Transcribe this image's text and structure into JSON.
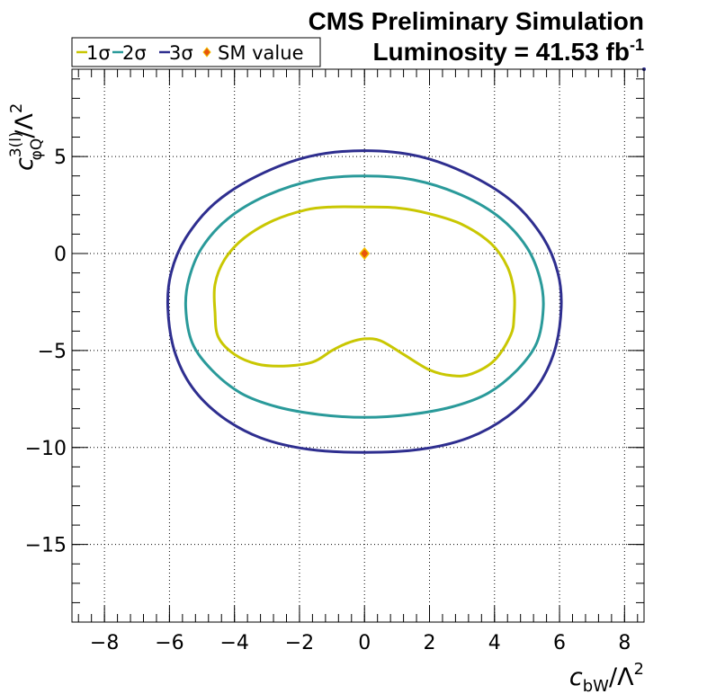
{
  "header": {
    "title": "CMS Preliminary Simulation",
    "luminosity_label": "Luminosity = 41.53 fb",
    "luminosity_exponent": "-1"
  },
  "legend": {
    "items": [
      {
        "label": "1σ",
        "color": "#c9c702",
        "marker": "line"
      },
      {
        "label": "2σ",
        "color": "#2a9a9a",
        "marker": "line"
      },
      {
        "label": "3σ",
        "color": "#2e2e8f",
        "marker": "line"
      },
      {
        "label": "SM value",
        "color": "#e8550c",
        "marker": "diamond"
      }
    ]
  },
  "axes": {
    "x": {
      "symbol": "c",
      "subscript": "bW",
      "suffix": "/Λ",
      "power": "2"
    },
    "y": {
      "symbol": "c",
      "superscript": "3(l)",
      "subscript": "φQ",
      "suffix": "/Λ",
      "power": "2"
    }
  },
  "chart_data": {
    "type": "line",
    "xlim": [
      -9.0,
      8.6
    ],
    "ylim": [
      -19.0,
      9.5
    ],
    "grid": true,
    "legend_position": "top-left",
    "x_ticks": [
      -8,
      -6,
      -4,
      -2,
      0,
      2,
      4,
      6,
      8
    ],
    "x_tick_labels": [
      "−8",
      "−6",
      "−4",
      "−2",
      "0",
      "2",
      "4",
      "6",
      "8"
    ],
    "y_ticks": [
      -15,
      -10,
      -5,
      0,
      5
    ],
    "y_tick_labels": [
      "−15",
      "−10",
      "−5",
      "0",
      "5"
    ],
    "sm_value": {
      "x": 0,
      "y": 0,
      "color": "#e8550c"
    },
    "series": [
      {
        "name": "1σ",
        "color": "#c9c702",
        "x": [
          0.0,
          1.0,
          2.0,
          3.0,
          3.9,
          4.4,
          4.6,
          4.6,
          4.5,
          4.0,
          3.3,
          2.7,
          2.0,
          1.2,
          0.5,
          0.0,
          -0.5,
          -1.0,
          -1.6,
          -2.5,
          -3.3,
          -4.0,
          -4.5,
          -4.6,
          -4.6,
          -4.3,
          -3.7,
          -2.8,
          -1.8,
          -1.0,
          0.0
        ],
        "y": [
          2.4,
          2.35,
          2.05,
          1.5,
          0.5,
          -0.7,
          -2.0,
          -3.2,
          -4.2,
          -5.5,
          -6.2,
          -6.3,
          -6.0,
          -5.2,
          -4.5,
          -4.4,
          -4.6,
          -5.0,
          -5.6,
          -5.8,
          -5.7,
          -5.2,
          -4.3,
          -3.0,
          -1.6,
          -0.3,
          0.8,
          1.7,
          2.25,
          2.4,
          2.4
        ]
      },
      {
        "name": "2σ",
        "color": "#2a9a9a",
        "x": [
          0.0,
          1.5,
          3.0,
          4.2,
          5.0,
          5.4,
          5.5,
          5.3,
          4.7,
          3.8,
          2.7,
          1.4,
          0.0,
          -1.4,
          -2.7,
          -3.8,
          -4.7,
          -5.3,
          -5.5,
          -5.4,
          -5.0,
          -4.2,
          -3.0,
          -1.5,
          0.0
        ],
        "y": [
          4.0,
          3.8,
          3.0,
          1.8,
          0.3,
          -1.3,
          -2.8,
          -4.6,
          -6.0,
          -7.2,
          -7.9,
          -8.3,
          -8.45,
          -8.3,
          -7.9,
          -7.2,
          -6.0,
          -4.6,
          -2.8,
          -1.3,
          0.3,
          1.8,
          3.0,
          3.8,
          4.0
        ]
      },
      {
        "name": "3σ",
        "color": "#2e2e8f",
        "x": [
          0.0,
          1.7,
          3.3,
          4.6,
          5.5,
          5.95,
          6.05,
          5.85,
          5.3,
          4.4,
          3.2,
          1.7,
          0.0,
          -1.7,
          -3.2,
          -4.4,
          -5.3,
          -5.85,
          -6.05,
          -5.95,
          -5.5,
          -4.6,
          -3.3,
          -1.7,
          0.0
        ],
        "y": [
          5.3,
          5.0,
          4.0,
          2.6,
          0.8,
          -1.0,
          -2.8,
          -5.0,
          -6.9,
          -8.4,
          -9.5,
          -10.1,
          -10.25,
          -10.1,
          -9.5,
          -8.4,
          -6.9,
          -5.0,
          -2.8,
          -1.0,
          0.8,
          2.6,
          4.0,
          5.0,
          5.3
        ]
      }
    ]
  }
}
